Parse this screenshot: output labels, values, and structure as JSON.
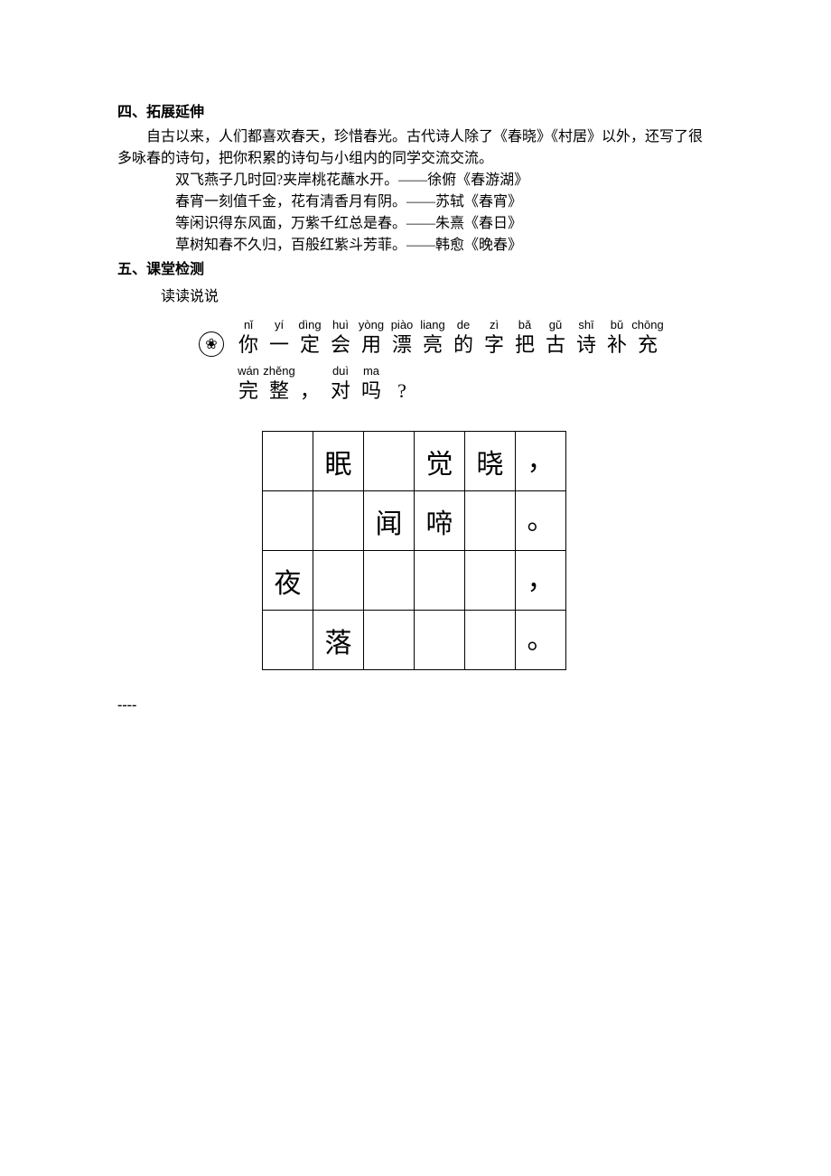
{
  "section4": {
    "heading": "四、拓展延伸",
    "intro": "自古以来，人们都喜欢春天，珍惜春光。古代诗人除了《春晓》《村居》以外，还写了很多咏春的诗句，把你积累的诗句与小组内的同学交流交流。",
    "poems": [
      "双飞燕子几时回?夹岸桃花蘸水开。——徐俯《春游湖》",
      "春宵一刻值千金，花有清香月有阴。——苏轼《春宵》",
      "等闲识得东风面，万紫千红总是春。——朱熹《春日》",
      "草树知春不久归，百般红紫斗芳菲。——韩愈《晚春》"
    ]
  },
  "section5": {
    "heading": "五、课堂检测",
    "subtitle": "读读说说",
    "flower_symbol": "❀",
    "prompt_line1": [
      {
        "p": "nǐ",
        "c": "你"
      },
      {
        "p": "yí",
        "c": "一"
      },
      {
        "p": "dìng",
        "c": "定"
      },
      {
        "p": "huì",
        "c": "会"
      },
      {
        "p": "yòng",
        "c": "用"
      },
      {
        "p": "piào",
        "c": "漂"
      },
      {
        "p": "liang",
        "c": "亮"
      },
      {
        "p": "de",
        "c": "的"
      },
      {
        "p": "zì",
        "c": "字"
      },
      {
        "p": "bǎ",
        "c": "把"
      },
      {
        "p": "gǔ",
        "c": "古"
      },
      {
        "p": "shī",
        "c": "诗"
      },
      {
        "p": "bǔ",
        "c": "补"
      },
      {
        "p": "chōng",
        "c": "充"
      }
    ],
    "prompt_line2": [
      {
        "p": "wán",
        "c": "完"
      },
      {
        "p": "zhěng",
        "c": "整"
      },
      {
        "p": "",
        "c": "，"
      },
      {
        "p": "duì",
        "c": "对"
      },
      {
        "p": "ma",
        "c": "吗"
      },
      {
        "p": "",
        "c": "?"
      }
    ],
    "grid": [
      [
        "",
        "眠",
        "",
        "觉",
        "晓",
        "，"
      ],
      [
        "",
        "",
        "闻",
        "啼",
        "",
        "。"
      ],
      [
        "夜",
        "",
        "",
        "",
        "",
        "，"
      ],
      [
        "",
        "落",
        "",
        "",
        "",
        "。"
      ]
    ]
  },
  "dashes": "----"
}
